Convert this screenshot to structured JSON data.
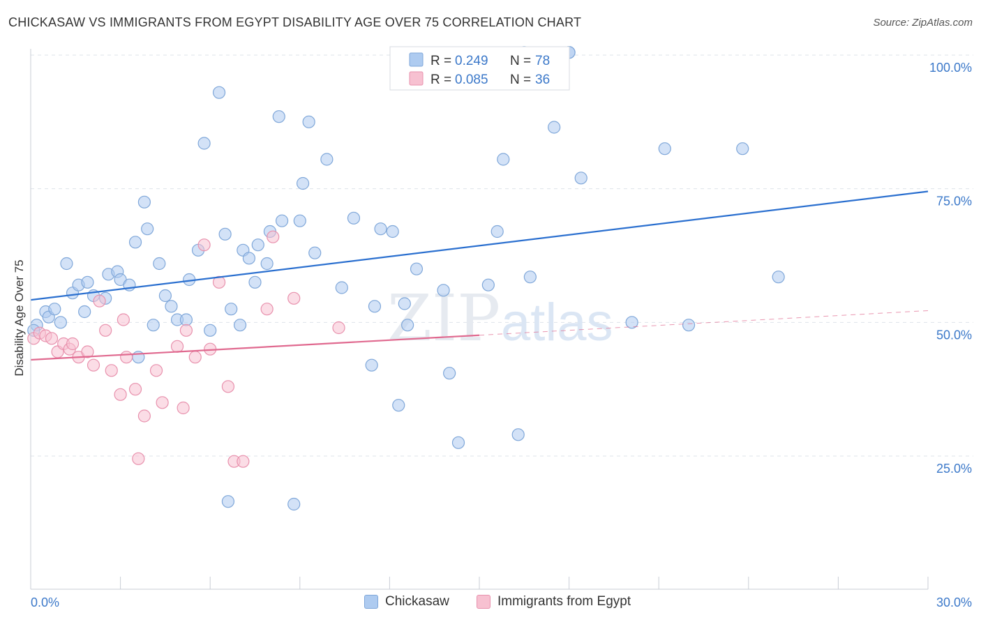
{
  "title": "CHICKASAW VS IMMIGRANTS FROM EGYPT DISABILITY AGE OVER 75 CORRELATION CHART",
  "source": "Source: ZipAtlas.com",
  "watermark": "ZIPatlas",
  "colors": {
    "blue_fill": "#aecbf0",
    "blue_stroke": "#7fa7d9",
    "blue_line": "#2a6fcf",
    "pink_fill": "#f7c1d1",
    "pink_stroke": "#e891ad",
    "pink_line": "#e0698f",
    "axis_text": "#3b78c9",
    "grid": "#dde3ea"
  },
  "legend_top": [
    {
      "r_label": "R =",
      "r_value": "0.249",
      "n_label": "N =",
      "n_value": "78"
    },
    {
      "r_label": "R =",
      "r_value": "0.085",
      "n_label": "N =",
      "n_value": "36"
    }
  ],
  "legend_bottom": [
    {
      "label": "Chickasaw"
    },
    {
      "label": "Immigrants from Egypt"
    }
  ],
  "chart_data": {
    "type": "scatter",
    "title": "CHICKASAW VS IMMIGRANTS FROM EGYPT DISABILITY AGE OVER 75 CORRELATION CHART",
    "xlabel": "",
    "ylabel": "Disability Age Over 75",
    "xlim": [
      0,
      30
    ],
    "ylim": [
      0,
      105
    ],
    "x_tick_labels": [
      "0.0%",
      "30.0%"
    ],
    "y_tick_labels": [
      "25.0%",
      "50.0%",
      "75.0%",
      "100.0%"
    ],
    "y_ticks": [
      25,
      50,
      75,
      100
    ],
    "grid": true,
    "legend_placement": "top-center",
    "series": [
      {
        "name": "Chickasaw",
        "color": "#aecbf0",
        "points": [
          [
            0.2,
            49.5
          ],
          [
            0.5,
            52
          ],
          [
            0.6,
            51
          ],
          [
            0.8,
            52.5
          ],
          [
            1.0,
            50
          ],
          [
            1.2,
            61
          ],
          [
            1.4,
            55.5
          ],
          [
            1.6,
            57
          ],
          [
            1.8,
            52
          ],
          [
            1.9,
            57.5
          ],
          [
            2.1,
            55
          ],
          [
            2.5,
            54.5
          ],
          [
            2.6,
            59
          ],
          [
            2.9,
            59.5
          ],
          [
            3.0,
            58
          ],
          [
            3.3,
            57
          ],
          [
            3.5,
            65
          ],
          [
            3.6,
            43.5
          ],
          [
            3.8,
            72.5
          ],
          [
            3.9,
            67.5
          ],
          [
            4.1,
            49.5
          ],
          [
            4.3,
            61
          ],
          [
            4.5,
            55
          ],
          [
            4.7,
            53
          ],
          [
            4.9,
            50.5
          ],
          [
            5.2,
            50.5
          ],
          [
            5.3,
            58
          ],
          [
            5.6,
            63.5
          ],
          [
            5.8,
            83.5
          ],
          [
            6.0,
            48.5
          ],
          [
            6.3,
            93
          ],
          [
            6.5,
            66.5
          ],
          [
            6.6,
            16.5
          ],
          [
            6.7,
            52.5
          ],
          [
            7.0,
            49.5
          ],
          [
            7.1,
            63.5
          ],
          [
            7.3,
            62
          ],
          [
            7.5,
            57.5
          ],
          [
            7.6,
            64.5
          ],
          [
            7.9,
            61
          ],
          [
            8.0,
            67
          ],
          [
            8.3,
            88.5
          ],
          [
            8.4,
            69
          ],
          [
            8.8,
            16
          ],
          [
            9.0,
            69
          ],
          [
            9.1,
            76
          ],
          [
            9.3,
            87.5
          ],
          [
            9.5,
            63
          ],
          [
            9.9,
            80.5
          ],
          [
            10.4,
            56.5
          ],
          [
            10.8,
            69.5
          ],
          [
            11.4,
            42
          ],
          [
            11.5,
            53
          ],
          [
            11.7,
            67.5
          ],
          [
            12.1,
            67
          ],
          [
            12.3,
            34.5
          ],
          [
            12.5,
            53.5
          ],
          [
            12.6,
            49.5
          ],
          [
            12.9,
            60
          ],
          [
            13.8,
            56
          ],
          [
            14.0,
            40.5
          ],
          [
            14.3,
            27.5
          ],
          [
            15.3,
            57
          ],
          [
            15.6,
            67
          ],
          [
            15.8,
            80.5
          ],
          [
            16.3,
            29
          ],
          [
            16.7,
            58.5
          ],
          [
            17.5,
            86.5
          ],
          [
            18.0,
            100.5
          ],
          [
            18.4,
            77
          ],
          [
            20.1,
            50
          ],
          [
            21.2,
            82.5
          ],
          [
            22.0,
            49.5
          ],
          [
            23.8,
            82.5
          ],
          [
            25.0,
            58.5
          ],
          [
            16.5,
            100.5
          ],
          [
            18.0,
            100.5
          ],
          [
            0.1,
            48.5
          ]
        ]
      },
      {
        "name": "Immigrants from Egypt",
        "color": "#f7c1d1",
        "points": [
          [
            0.1,
            47
          ],
          [
            0.3,
            48
          ],
          [
            0.5,
            47.5
          ],
          [
            0.7,
            47
          ],
          [
            0.9,
            44.5
          ],
          [
            1.1,
            46
          ],
          [
            1.3,
            45
          ],
          [
            1.4,
            46
          ],
          [
            1.6,
            43.5
          ],
          [
            1.9,
            44.5
          ],
          [
            2.1,
            42
          ],
          [
            2.3,
            54
          ],
          [
            2.5,
            48.5
          ],
          [
            2.7,
            41
          ],
          [
            3.0,
            36.5
          ],
          [
            3.1,
            50.5
          ],
          [
            3.2,
            43.5
          ],
          [
            3.5,
            37.5
          ],
          [
            3.6,
            24.5
          ],
          [
            3.8,
            32.5
          ],
          [
            4.2,
            41
          ],
          [
            4.4,
            35
          ],
          [
            4.9,
            45.5
          ],
          [
            5.1,
            34
          ],
          [
            5.2,
            48.5
          ],
          [
            5.5,
            43.5
          ],
          [
            5.8,
            64.5
          ],
          [
            6.0,
            45
          ],
          [
            6.3,
            57.5
          ],
          [
            6.6,
            38
          ],
          [
            6.8,
            24
          ],
          [
            7.1,
            24
          ],
          [
            7.9,
            52.5
          ],
          [
            8.1,
            66
          ],
          [
            8.8,
            54.5
          ],
          [
            10.3,
            49
          ]
        ]
      }
    ],
    "trend_lines": [
      {
        "series": "Chickasaw",
        "x": [
          0,
          30
        ],
        "y": [
          54.2,
          74.5
        ],
        "style": "solid"
      },
      {
        "series": "Immigrants from Egypt",
        "x": [
          0,
          15
        ],
        "y": [
          43,
          47.6
        ],
        "style": "solid"
      },
      {
        "series": "Immigrants from Egypt",
        "x": [
          15,
          30
        ],
        "y": [
          47.6,
          52.2
        ],
        "style": "dashed"
      }
    ]
  }
}
